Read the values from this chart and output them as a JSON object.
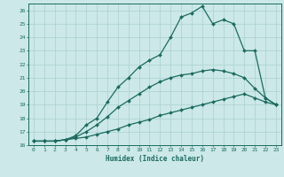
{
  "xlabel": "Humidex (Indice chaleur)",
  "ylabel": "",
  "bg_color": "#cce8e8",
  "line_color": "#1a6b60",
  "grid_color": "#aad0d0",
  "xlim": [
    -0.5,
    23.5
  ],
  "ylim": [
    16,
    26.5
  ],
  "xticks": [
    0,
    1,
    2,
    3,
    4,
    5,
    6,
    7,
    8,
    9,
    10,
    11,
    12,
    13,
    14,
    15,
    16,
    17,
    18,
    19,
    20,
    21,
    22,
    23
  ],
  "yticks": [
    16,
    17,
    18,
    19,
    20,
    21,
    22,
    23,
    24,
    25,
    26
  ],
  "series": [
    {
      "x": [
        0,
        1,
        2,
        3,
        4,
        5,
        6,
        7,
        8,
        9,
        10,
        11,
        12,
        13,
        14,
        15,
        16,
        17,
        18,
        19,
        20,
        21,
        22,
        23
      ],
      "y": [
        16.3,
        16.3,
        16.3,
        16.4,
        16.5,
        16.6,
        16.8,
        17.0,
        17.2,
        17.5,
        17.7,
        17.9,
        18.2,
        18.4,
        18.6,
        18.8,
        19.0,
        19.2,
        19.4,
        19.6,
        19.8,
        19.5,
        19.2,
        19.0
      ],
      "marker": "D",
      "markersize": 2.0,
      "linewidth": 0.9
    },
    {
      "x": [
        0,
        1,
        2,
        3,
        4,
        5,
        6,
        7,
        8,
        9,
        10,
        11,
        12,
        13,
        14,
        15,
        16,
        17,
        18,
        19,
        20,
        21,
        22,
        23
      ],
      "y": [
        16.3,
        16.3,
        16.3,
        16.4,
        16.6,
        17.0,
        17.5,
        18.1,
        18.8,
        19.3,
        19.8,
        20.3,
        20.7,
        21.0,
        21.2,
        21.3,
        21.5,
        21.6,
        21.5,
        21.3,
        21.0,
        20.2,
        19.5,
        19.0
      ],
      "marker": "D",
      "markersize": 2.0,
      "linewidth": 0.9
    },
    {
      "x": [
        0,
        1,
        2,
        3,
        4,
        5,
        6,
        7,
        8,
        9,
        10,
        11,
        12,
        13,
        14,
        15,
        16,
        17,
        18,
        19,
        20,
        21,
        22,
        23
      ],
      "y": [
        16.3,
        16.3,
        16.3,
        16.4,
        16.7,
        17.5,
        18.0,
        19.2,
        20.3,
        21.0,
        21.8,
        22.3,
        22.7,
        24.0,
        25.5,
        25.8,
        26.3,
        25.0,
        25.3,
        25.0,
        23.0,
        23.0,
        19.5,
        19.0
      ],
      "marker": "D",
      "markersize": 2.0,
      "linewidth": 0.9
    }
  ]
}
